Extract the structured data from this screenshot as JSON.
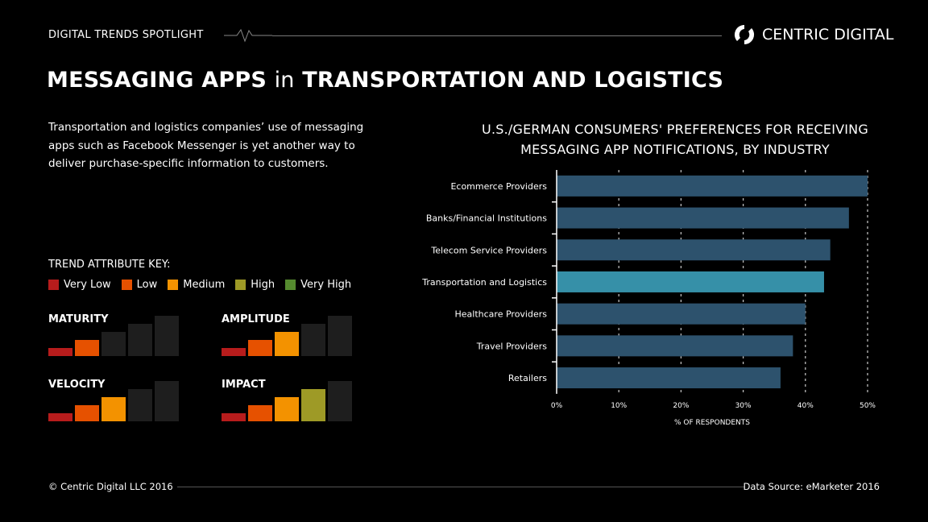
{
  "header": {
    "spotlight": "DIGITAL TRENDS SPOTLIGHT",
    "brand": "CENTRIC DIGITAL"
  },
  "title": {
    "bold1": "MESSAGING APPS",
    "thin": "in",
    "bold2": "TRANSPORTATION AND LOGISTICS"
  },
  "description": "Transportation and logistics companies’ use of messaging apps such as Facebook Messenger is yet another way to deliver purchase-specific information to customers.",
  "key": {
    "title": "TREND ATTRIBUTE KEY:",
    "levels": [
      {
        "label": "Very Low",
        "color": "#b71c1c"
      },
      {
        "label": "Low",
        "color": "#e65100"
      },
      {
        "label": "Medium",
        "color": "#f39200"
      },
      {
        "label": "High",
        "color": "#9e9a26"
      },
      {
        "label": "Very High",
        "color": "#558b2f"
      }
    ],
    "inactive_color": "#1e1e1e"
  },
  "attributes": [
    {
      "label": "MATURITY",
      "level": 2
    },
    {
      "label": "AMPLITUDE",
      "level": 3
    },
    {
      "label": "VELOCITY",
      "level": 3
    },
    {
      "label": "IMPACT",
      "level": 4
    }
  ],
  "chart_data": {
    "type": "bar",
    "orientation": "horizontal",
    "title": "U.S./GERMAN CONSUMERS' PREFERENCES FOR RECEIVING MESSAGING APP NOTIFICATIONS, BY INDUSTRY",
    "title_lines": [
      "U.S./GERMAN CONSUMERS' PREFERENCES FOR RECEIVING",
      "MESSAGING APP NOTIFICATIONS, BY INDUSTRY"
    ],
    "categories": [
      "Ecommerce Providers",
      "Banks/Financial Institutions",
      "Telecom Service Providers",
      "Transportation and Logistics",
      "Healthcare Providers",
      "Travel Providers",
      "Retailers"
    ],
    "values": [
      50,
      47,
      44,
      43,
      40,
      38,
      36
    ],
    "highlight": "Transportation and Logistics",
    "xlabel": "% OF RESPONDENTS",
    "xlim": [
      0,
      50
    ],
    "xticks": [
      "0%",
      "10%",
      "20%",
      "30%",
      "40%",
      "50%"
    ],
    "grid": "vertical dashed",
    "bar_color": "#2d526d",
    "highlight_color": "#3690a8"
  },
  "footer": {
    "copyright": "© Centric Digital LLC 2016",
    "source": "Data Source: eMarketer 2016"
  }
}
